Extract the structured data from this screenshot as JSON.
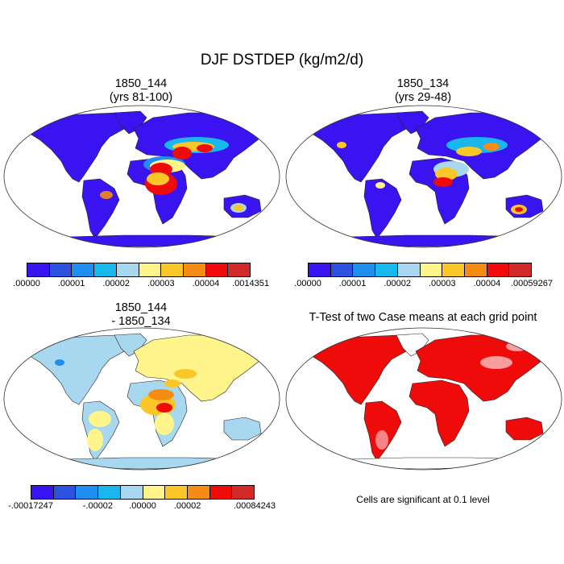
{
  "title": "DJF DSTDEP (kg/m2/d)",
  "palette": [
    "#3a14f0",
    "#2e52e0",
    "#1e8ef0",
    "#18b8ee",
    "#a8d8f0",
    "#fff58a",
    "#fbc628",
    "#f58c14",
    "#f00b0b",
    "#d22a2a"
  ],
  "panels": {
    "p1": {
      "title1": "1850_144",
      "title2": "(yrs 81-100)",
      "ticks": [
        ".00000",
        ".00001",
        ".00002",
        ".00003",
        ".00004",
        ".0014351"
      ]
    },
    "p2": {
      "title1": "1850_134",
      "title2": "(yrs 29-48)",
      "ticks": [
        ".00000",
        ".00001",
        ".00002",
        ".00003",
        ".00004",
        ".00059267"
      ]
    },
    "p3": {
      "title1": "1850_144",
      "title2": "- 1850_134",
      "ticks": [
        "-.00017247",
        "-.00002",
        ".00000",
        ".00002",
        ".00084243"
      ]
    },
    "p4": {
      "title1": "T-Test of two Case means at each grid point",
      "note": "Cells are significant at 0.1 level"
    }
  }
}
